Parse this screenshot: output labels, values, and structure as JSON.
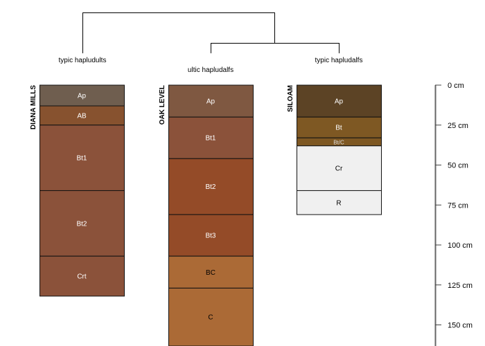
{
  "depth_axis": {
    "unit": "cm",
    "ticks": [
      0,
      25,
      50,
      75,
      100,
      125,
      150
    ],
    "tick_labels": [
      "0 cm",
      "25 cm",
      "50 cm",
      "75 cm",
      "100 cm",
      "125 cm",
      "150 cm"
    ]
  },
  "dendrogram": {
    "labels": [
      "typic hapludults",
      "ultic hapludalfs",
      "typic hapludalfs"
    ]
  },
  "profiles": [
    {
      "name": "DIANA MILLS",
      "horizons": [
        {
          "name": "Ap",
          "top": 0,
          "bottom": 13,
          "color": "#6f5e4f",
          "text_color": "#ffffff"
        },
        {
          "name": "AB",
          "top": 13,
          "bottom": 25,
          "color": "#87522f",
          "text_color": "#ffffff"
        },
        {
          "name": "Bt1",
          "top": 25,
          "bottom": 66,
          "color": "#8b523a",
          "text_color": "#ffffff"
        },
        {
          "name": "Bt2",
          "top": 66,
          "bottom": 107,
          "color": "#8b523a",
          "text_color": "#ffffff"
        },
        {
          "name": "Crt",
          "top": 107,
          "bottom": 132,
          "color": "#8b523a",
          "text_color": "#ffffff"
        }
      ]
    },
    {
      "name": "OAK LEVEL",
      "horizons": [
        {
          "name": "Ap",
          "top": 0,
          "bottom": 20,
          "color": "#7f5841",
          "text_color": "#ffffff"
        },
        {
          "name": "Bt1",
          "top": 20,
          "bottom": 46,
          "color": "#8b523a",
          "text_color": "#ffffff"
        },
        {
          "name": "Bt2",
          "top": 46,
          "bottom": 81,
          "color": "#944b28",
          "text_color": "#ffffff"
        },
        {
          "name": "Bt3",
          "top": 81,
          "bottom": 107,
          "color": "#944b28",
          "text_color": "#ffffff"
        },
        {
          "name": "BC",
          "top": 107,
          "bottom": 127,
          "color": "#ab6a36",
          "text_color": "#000000"
        },
        {
          "name": "C",
          "top": 127,
          "bottom": 175,
          "color": "#ab6a36",
          "text_color": "#000000"
        }
      ]
    },
    {
      "name": "SILOAM",
      "horizons": [
        {
          "name": "Ap",
          "top": 0,
          "bottom": 20,
          "color": "#5c4325",
          "text_color": "#ffffff"
        },
        {
          "name": "Bt",
          "top": 20,
          "bottom": 33,
          "color": "#7e5823",
          "text_color": "#ffffff"
        },
        {
          "name": "Bt/C",
          "top": 33,
          "bottom": 38,
          "color": "#7e5823",
          "text_color": "#dddddd"
        },
        {
          "name": "Cr",
          "top": 38,
          "bottom": 66,
          "color": "#f0f0f0",
          "text_color": "#000000"
        },
        {
          "name": "R",
          "top": 66,
          "bottom": 81,
          "color": "#f0f0f0",
          "text_color": "#000000"
        }
      ]
    }
  ]
}
